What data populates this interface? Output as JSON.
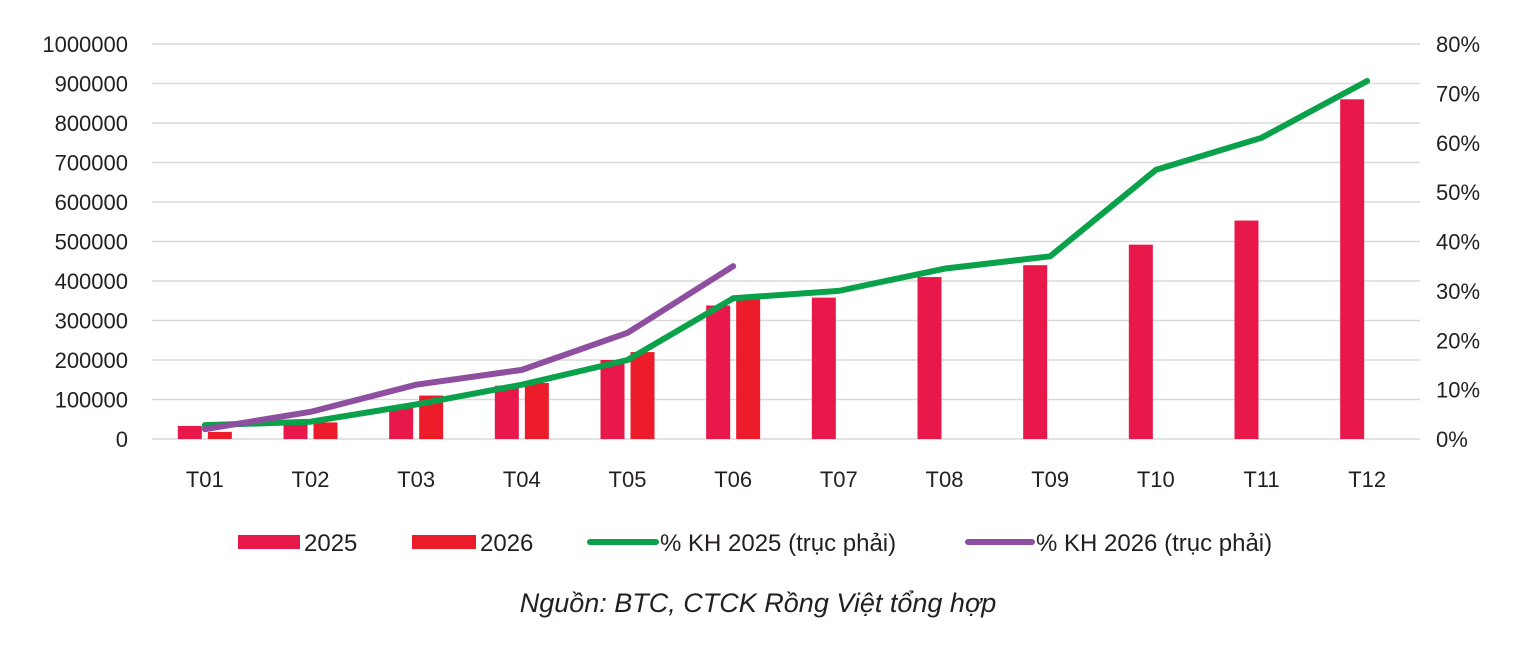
{
  "chart_data": {
    "type": "bar",
    "categories": [
      "T01",
      "T02",
      "T03",
      "T04",
      "T05",
      "T06",
      "T07",
      "T08",
      "T09",
      "T10",
      "T11",
      "T12"
    ],
    "series": [
      {
        "name": "2025",
        "kind": "bar",
        "axis": "left",
        "color": "#e8194a",
        "values": [
          33000,
          45000,
          83000,
          135000,
          200000,
          338000,
          358000,
          410000,
          440000,
          492000,
          553000,
          860000
        ]
      },
      {
        "name": "2026",
        "kind": "bar",
        "axis": "left",
        "color": "#ec1c2a",
        "values": [
          18000,
          42000,
          110000,
          142000,
          220000,
          355000,
          null,
          null,
          null,
          null,
          null,
          null
        ]
      },
      {
        "name": "% KH 2025 (trục phải)",
        "kind": "line",
        "axis": "right",
        "color": "#0aa14b",
        "values": [
          0.028,
          0.035,
          0.07,
          0.11,
          0.16,
          0.285,
          0.3,
          0.345,
          0.37,
          0.545,
          0.61,
          0.725
        ]
      },
      {
        "name": "% KH 2026 (trục phải)",
        "kind": "line",
        "axis": "right",
        "color": "#8e4fa0",
        "values": [
          0.02,
          0.055,
          0.11,
          0.14,
          0.215,
          0.35,
          null,
          null,
          null,
          null,
          null,
          null
        ]
      }
    ],
    "y_left": {
      "ylim": [
        0,
        1000000
      ],
      "ticks": [
        "0",
        "100000",
        "200000",
        "300000",
        "400000",
        "500000",
        "600000",
        "700000",
        "800000",
        "900000",
        "1000000"
      ]
    },
    "y_right": {
      "ylim": [
        0,
        0.8
      ],
      "ticks": [
        "0%",
        "10%",
        "20%",
        "30%",
        "40%",
        "50%",
        "60%",
        "70%",
        "80%"
      ]
    },
    "grid": true,
    "legend_position": "bottom",
    "source": "Nguồn: BTC, CTCK Rồng Việt tổng hợp"
  }
}
